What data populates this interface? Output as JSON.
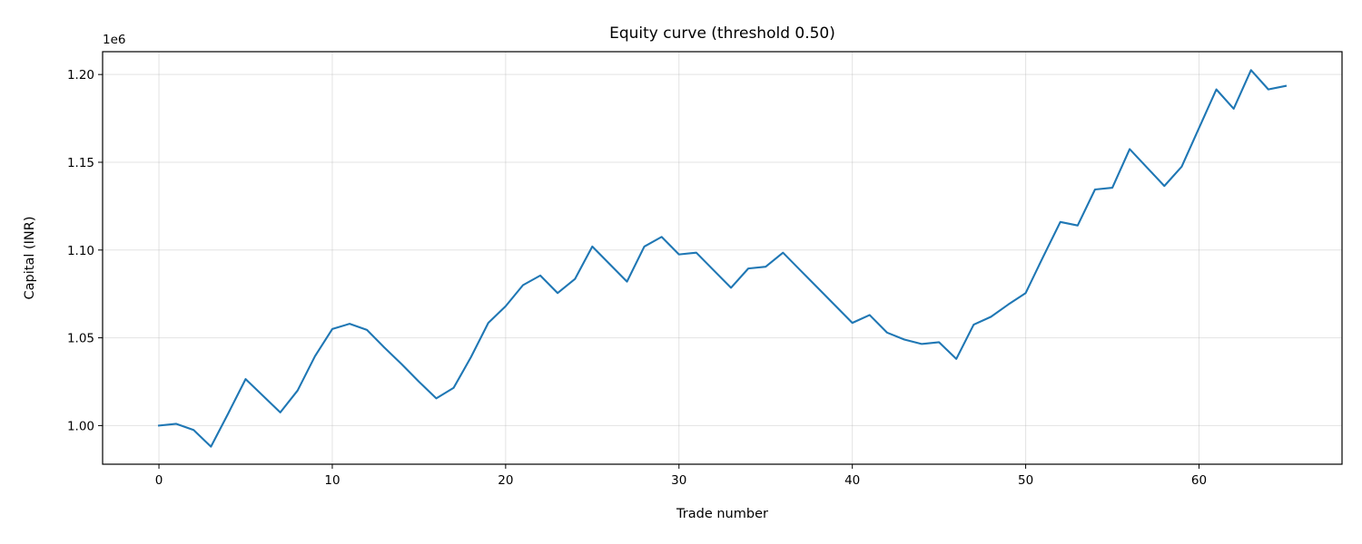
{
  "chart_data": {
    "type": "line",
    "title": "Equity curve (threshold 0.50)",
    "xlabel": "Trade number",
    "ylabel": "Capital (INR)",
    "y_offset_label": "1e6",
    "xlim": [
      -3.25,
      68.25
    ],
    "ylim": [
      978000,
      1213000
    ],
    "xticks": [
      0,
      10,
      20,
      30,
      40,
      50,
      60
    ],
    "xtick_labels": [
      "0",
      "10",
      "20",
      "30",
      "40",
      "50",
      "60"
    ],
    "yticks": [
      1000000,
      1050000,
      1100000,
      1150000,
      1200000
    ],
    "ytick_labels": [
      "1.00",
      "1.05",
      "1.10",
      "1.15",
      "1.20"
    ],
    "grid": true,
    "series": [
      {
        "color": "#1f77b4",
        "x": [
          0,
          1,
          2,
          3,
          4,
          5,
          6,
          7,
          8,
          9,
          10,
          11,
          12,
          13,
          14,
          15,
          16,
          17,
          18,
          19,
          20,
          21,
          22,
          23,
          24,
          25,
          26,
          27,
          28,
          29,
          30,
          31,
          32,
          33,
          34,
          35,
          36,
          37,
          38,
          39,
          40,
          41,
          42,
          43,
          44,
          45,
          46,
          47,
          48,
          49,
          50,
          51,
          52,
          53,
          54,
          55,
          56,
          57,
          58,
          59,
          60,
          61,
          62,
          63,
          64,
          65
        ],
        "y": [
          1000000,
          1001000,
          997500,
          988000,
          1007000,
          1026500,
          1017000,
          1007500,
          1020000,
          1039500,
          1055000,
          1058000,
          1054500,
          1044500,
          1035000,
          1025000,
          1015500,
          1021500,
          1039000,
          1058500,
          1068000,
          1080000,
          1085500,
          1075500,
          1083500,
          1102000,
          1092000,
          1082000,
          1102000,
          1107500,
          1097500,
          1098500,
          1088500,
          1078500,
          1089500,
          1090500,
          1098500,
          1088500,
          1078500,
          1068500,
          1058500,
          1063000,
          1053000,
          1049000,
          1046500,
          1047500,
          1038000,
          1057500,
          1062000,
          1069000,
          1075500,
          1096000,
          1116000,
          1114000,
          1134500,
          1135500,
          1157500,
          1147000,
          1136500,
          1147500,
          1169500,
          1191500,
          1180500,
          1202500,
          1191500,
          1193500
        ]
      }
    ]
  }
}
